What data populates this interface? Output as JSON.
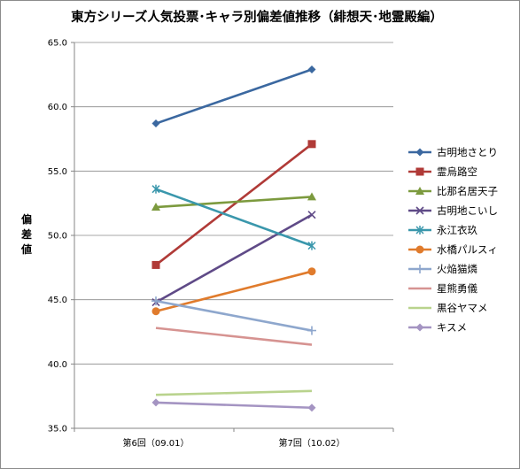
{
  "chart_data": {
    "type": "line",
    "title": "東方シリーズ人気投票･キャラ別偏差値推移（緋想天･地霊殿編）",
    "ylabel": "偏差値",
    "xlabel": "",
    "categories": [
      "第6回（09.01）",
      "第7回（10.02）"
    ],
    "ylim": [
      35.0,
      65.0
    ],
    "ytick_step": 5,
    "yticks": [
      "35.0",
      "40.0",
      "45.0",
      "50.0",
      "55.0",
      "60.0",
      "65.0"
    ],
    "grid": true,
    "legend": "right",
    "series": [
      {
        "name": "古明地さとり",
        "values": [
          58.7,
          62.9
        ],
        "color": "#3b68a0",
        "marker": "diamond"
      },
      {
        "name": "霊烏路空",
        "values": [
          47.7,
          57.1
        ],
        "color": "#b03a37",
        "marker": "square"
      },
      {
        "name": "比那名居天子",
        "values": [
          52.2,
          53.0
        ],
        "color": "#7c9a3e",
        "marker": "triangle"
      },
      {
        "name": "古明地こいし",
        "values": [
          44.8,
          51.6
        ],
        "color": "#5f4a87",
        "marker": "x"
      },
      {
        "name": "永江衣玖",
        "values": [
          53.6,
          49.2
        ],
        "color": "#3a97ac",
        "marker": "star"
      },
      {
        "name": "水橋パルスィ",
        "values": [
          44.1,
          47.2
        ],
        "color": "#e07b2c",
        "marker": "circle"
      },
      {
        "name": "火焔猫燐",
        "values": [
          44.9,
          42.6
        ],
        "color": "#8ea7cd",
        "marker": "plus"
      },
      {
        "name": "星熊勇儀",
        "values": [
          42.8,
          41.5
        ],
        "color": "#d69391",
        "marker": "none"
      },
      {
        "name": "黒谷ヤマメ",
        "values": [
          37.6,
          37.9
        ],
        "color": "#b9d38d",
        "marker": "none"
      },
      {
        "name": "キスメ",
        "values": [
          37.0,
          36.6
        ],
        "color": "#a494c2",
        "marker": "diamond"
      }
    ]
  }
}
